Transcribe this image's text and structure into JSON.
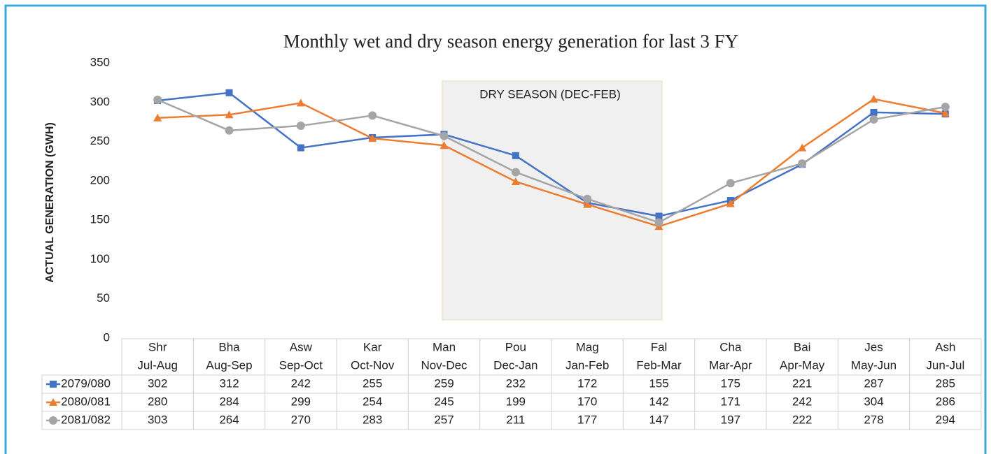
{
  "chart_data": {
    "type": "line",
    "title": "Monthly wet and dry season energy generation for last 3 FY",
    "y_label": "ACTUAL GENERATION (GWH)",
    "annotation": "DRY SEASON (DEC-FEB)",
    "categories": [
      [
        "Shr",
        "Jul-Aug"
      ],
      [
        "Bha",
        "Aug-Sep"
      ],
      [
        "Asw",
        "Sep-Oct"
      ],
      [
        "Kar",
        "Oct-Nov"
      ],
      [
        "Man",
        "Nov-Dec"
      ],
      [
        "Pou",
        "Dec-Jan"
      ],
      [
        "Mag",
        "Jan-Feb"
      ],
      [
        "Fal",
        "Feb-Mar"
      ],
      [
        "Cha",
        "Mar-Apr"
      ],
      [
        "Bai",
        "Apr-May"
      ],
      [
        "Jes",
        "May-Jun"
      ],
      [
        "Ash",
        "Jun-Jul"
      ]
    ],
    "series": [
      {
        "name": "2079/080",
        "color": "#4472c4",
        "marker": "square",
        "values": [
          302,
          312,
          242,
          255,
          259,
          232,
          172,
          155,
          175,
          221,
          287,
          285
        ]
      },
      {
        "name": "2080/081",
        "color": "#ed7d31",
        "marker": "triangle",
        "values": [
          280,
          284,
          299,
          254,
          245,
          199,
          170,
          142,
          171,
          242,
          304,
          286
        ]
      },
      {
        "name": "2081/082",
        "color": "#a5a5a5",
        "marker": "circle",
        "values": [
          303,
          264,
          270,
          283,
          257,
          211,
          177,
          147,
          197,
          222,
          278,
          294
        ]
      }
    ],
    "ylim": [
      0,
      350
    ],
    "yticks": [
      0,
      50,
      100,
      150,
      200,
      250,
      300,
      350
    ],
    "grid": false
  }
}
